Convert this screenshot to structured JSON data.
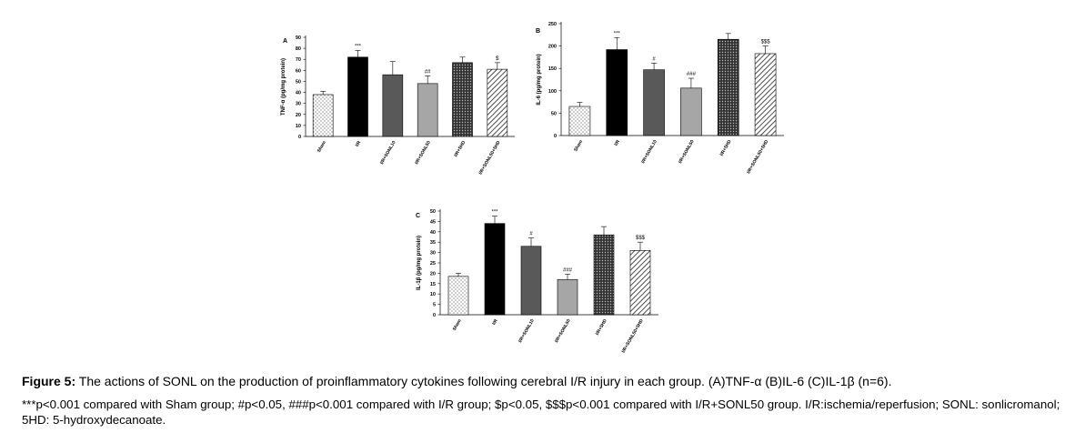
{
  "chart_data": [
    {
      "type": "bar",
      "panel_label": "A",
      "ylabel": "TNF-α (pg/mg protein)",
      "ylim": [
        0,
        90
      ],
      "yticks": [
        0,
        10,
        20,
        30,
        40,
        50,
        60,
        70,
        80,
        90
      ],
      "categories": [
        "Sham",
        "I/R",
        "I/R+SONL10",
        "I/R+SONL50",
        "I/R+5HD",
        "I/R+SONL50+5HD"
      ],
      "values": [
        38,
        72,
        56,
        48,
        67,
        61
      ],
      "errors": [
        3,
        6,
        12,
        7,
        5,
        6
      ],
      "annotations": [
        "",
        "***",
        "",
        "##",
        "",
        "$"
      ],
      "patterns": [
        "dots",
        "solid-black",
        "solid-darkgray",
        "solid-lightgray",
        "dense-dots",
        "diagonal"
      ]
    },
    {
      "type": "bar",
      "panel_label": "B",
      "ylabel": "IL-6 (pg/mg protein)",
      "ylim": [
        0,
        250
      ],
      "yticks": [
        0,
        50,
        100,
        150,
        200,
        250
      ],
      "categories": [
        "Sham",
        "I/R",
        "I/R+SONL10",
        "I/R+SONL50",
        "I/R+5HD",
        "I/R+SONL50+5HD"
      ],
      "values": [
        65,
        192,
        147,
        106,
        215,
        183
      ],
      "errors": [
        9,
        27,
        15,
        22,
        13,
        17
      ],
      "annotations": [
        "",
        "***",
        "#",
        "###",
        "",
        "$$$"
      ],
      "patterns": [
        "dots",
        "solid-black",
        "solid-darkgray",
        "solid-lightgray",
        "dense-dots",
        "diagonal"
      ]
    },
    {
      "type": "bar",
      "panel_label": "C",
      "ylabel": "IL-1β (pg/mg protein)",
      "ylim": [
        0,
        50
      ],
      "yticks": [
        0,
        5,
        10,
        15,
        20,
        25,
        30,
        35,
        40,
        45,
        50
      ],
      "ytick_labels": [
        "0",
        "5",
        "10",
        "15",
        "20",
        "25",
        "30",
        "35",
        "40",
        "45",
        "50"
      ],
      "categories": [
        "Sham",
        "I/R",
        "I/R+SONL10",
        "I/R+SONL50",
        "I/R+5HD",
        "I/R+SONL50+5HD"
      ],
      "values": [
        18.5,
        44,
        33,
        17,
        38.5,
        31
      ],
      "errors": [
        1.5,
        3.5,
        4,
        2.5,
        4,
        4
      ],
      "annotations": [
        "",
        "***",
        "#",
        "###",
        "",
        "$$$"
      ],
      "patterns": [
        "dots",
        "solid-black",
        "solid-darkgray",
        "solid-lightgray",
        "dense-dots",
        "diagonal"
      ]
    }
  ],
  "caption": {
    "figure_label": "Figure 5:",
    "title_text": "The actions of SONL on the production of proinflammatory cytokines following cerebral I/R injury in each group. (A)TNF-α (B)IL-6 (C)IL-1β (n=6).",
    "notes": "***p<0.001 compared with Sham group; #p<0.05, ###p<0.001 compared with I/R group; $p<0.05, $$$p<0.001 compared with I/R+SONL50 group. I/R:ischemia/reperfusion; SONL: sonlicromanol; 5HD: 5-hydroxydecanoate."
  }
}
